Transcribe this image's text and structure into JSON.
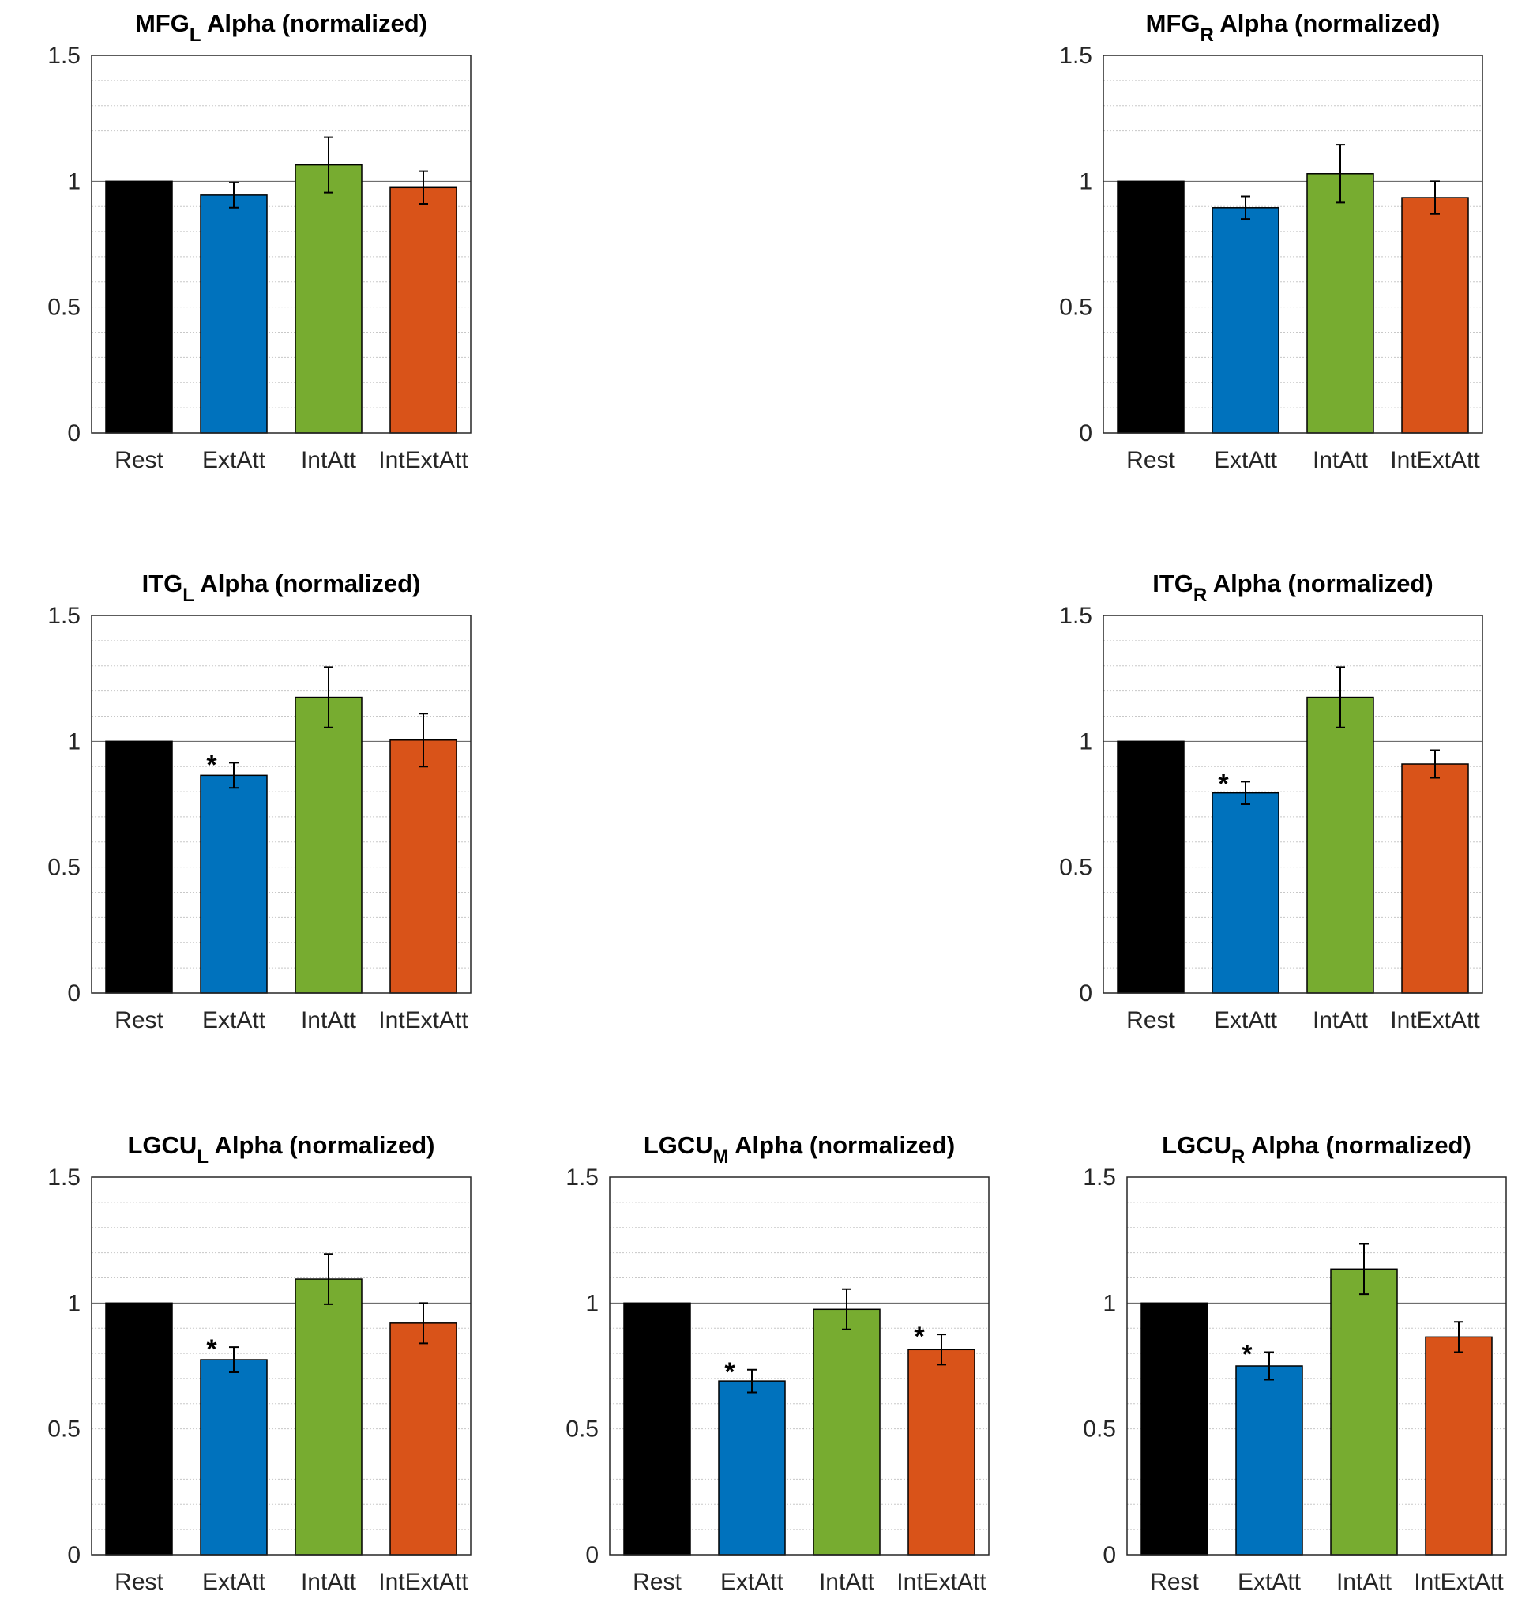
{
  "chart_data": [
    {
      "panel": "MFG_L",
      "type": "bar",
      "title": {
        "main": "MFG",
        "sub": "L",
        "rest": "Alpha (normalized)"
      },
      "categories": [
        "Rest",
        "ExtAtt",
        "IntAtt",
        "IntExtAtt"
      ],
      "values": [
        1.0,
        0.945,
        1.065,
        0.975
      ],
      "errors": [
        0.0,
        0.05,
        0.11,
        0.065
      ],
      "significant": [
        false,
        false,
        false,
        false
      ],
      "ylim": [
        0,
        1.5
      ],
      "yticks": [
        "0",
        "0.5",
        "1",
        "1.5"
      ],
      "grid": "minor dotted, major at 1"
    },
    {
      "panel": "MFG_R",
      "type": "bar",
      "title": {
        "main": "MFG",
        "sub": "R",
        "rest": "Alpha (normalized)"
      },
      "categories": [
        "Rest",
        "ExtAtt",
        "IntAtt",
        "IntExtAtt"
      ],
      "values": [
        1.0,
        0.895,
        1.03,
        0.935
      ],
      "errors": [
        0.0,
        0.045,
        0.115,
        0.065
      ],
      "significant": [
        false,
        false,
        false,
        false
      ],
      "ylim": [
        0,
        1.5
      ],
      "yticks": [
        "0",
        "0.5",
        "1",
        "1.5"
      ],
      "grid": "minor dotted, major at 1"
    },
    {
      "panel": "ITG_L",
      "type": "bar",
      "title": {
        "main": "ITG",
        "sub": "L",
        "rest": "Alpha (normalized)"
      },
      "categories": [
        "Rest",
        "ExtAtt",
        "IntAtt",
        "IntExtAtt"
      ],
      "values": [
        1.0,
        0.865,
        1.175,
        1.005
      ],
      "errors": [
        0.0,
        0.05,
        0.12,
        0.105
      ],
      "significant": [
        false,
        true,
        false,
        false
      ],
      "ylim": [
        0,
        1.5
      ],
      "yticks": [
        "0",
        "0.5",
        "1",
        "1.5"
      ],
      "grid": "minor dotted, major at 1"
    },
    {
      "panel": "ITG_R",
      "type": "bar",
      "title": {
        "main": "ITG",
        "sub": "R",
        "rest": "Alpha (normalized)"
      },
      "categories": [
        "Rest",
        "ExtAtt",
        "IntAtt",
        "IntExtAtt"
      ],
      "values": [
        1.0,
        0.795,
        1.175,
        0.91
      ],
      "errors": [
        0.0,
        0.045,
        0.12,
        0.055
      ],
      "significant": [
        false,
        true,
        false,
        false
      ],
      "ylim": [
        0,
        1.5
      ],
      "yticks": [
        "0",
        "0.5",
        "1",
        "1.5"
      ],
      "grid": "minor dotted, major at 1"
    },
    {
      "panel": "LGCU_L",
      "type": "bar",
      "title": {
        "main": "LGCU",
        "sub": "L",
        "rest": "Alpha (normalized)"
      },
      "categories": [
        "Rest",
        "ExtAtt",
        "IntAtt",
        "IntExtAtt"
      ],
      "values": [
        1.0,
        0.775,
        1.095,
        0.92
      ],
      "errors": [
        0.0,
        0.05,
        0.1,
        0.08
      ],
      "significant": [
        false,
        true,
        false,
        false
      ],
      "ylim": [
        0,
        1.5
      ],
      "yticks": [
        "0",
        "0.5",
        "1",
        "1.5"
      ],
      "grid": "minor dotted, major at 1"
    },
    {
      "panel": "LGCU_M",
      "type": "bar",
      "title": {
        "main": "LGCU",
        "sub": "M",
        "rest": "Alpha (normalized)"
      },
      "categories": [
        "Rest",
        "ExtAtt",
        "IntAtt",
        "IntExtAtt"
      ],
      "values": [
        1.0,
        0.69,
        0.975,
        0.815
      ],
      "errors": [
        0.0,
        0.045,
        0.08,
        0.06
      ],
      "significant": [
        false,
        true,
        false,
        true
      ],
      "ylim": [
        0,
        1.5
      ],
      "yticks": [
        "0",
        "0.5",
        "1",
        "1.5"
      ],
      "grid": "minor dotted, major at 1"
    },
    {
      "panel": "LGCU_R",
      "type": "bar",
      "title": {
        "main": "LGCU",
        "sub": "R",
        "rest": "Alpha (normalized)"
      },
      "categories": [
        "Rest",
        "ExtAtt",
        "IntAtt",
        "IntExtAtt"
      ],
      "values": [
        1.0,
        0.75,
        1.135,
        0.865
      ],
      "errors": [
        0.0,
        0.055,
        0.1,
        0.06
      ],
      "significant": [
        false,
        true,
        false,
        false
      ],
      "ylim": [
        0,
        1.5
      ],
      "yticks": [
        "0",
        "0.5",
        "1",
        "1.5"
      ],
      "grid": "minor dotted, major at 1"
    }
  ],
  "bar_colors": [
    "#000000",
    "#0072BD",
    "#77AC30",
    "#D95319"
  ],
  "significance_marker": "*"
}
